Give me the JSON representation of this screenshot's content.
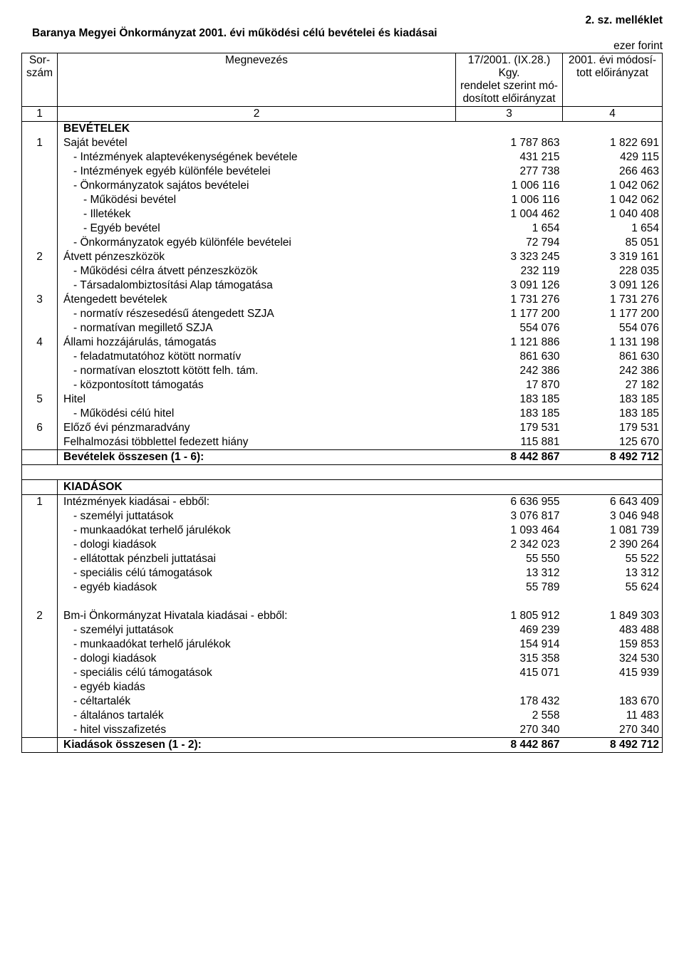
{
  "meta": {
    "attachment": "2. sz. melléklet",
    "title": "Baranya Megyei Önkormányzat 2001. évi működési célú bevételei és kiadásai",
    "unit": "ezer forint"
  },
  "header": {
    "c1a": "Sor-",
    "c1b": "szám",
    "c2": "Megnevezés",
    "c3a": "17/2001. (IX.28.) Kgy.",
    "c3b": "rendelet szerint mó-",
    "c3c": "dosított előirányzat",
    "c4a": "2001. évi módosí-",
    "c4b": "tott előirányzat",
    "n1": "1",
    "n2": "2",
    "n3": "3",
    "n4": "4"
  },
  "rows": [
    {
      "num": "",
      "name": "BEVÉTELEK",
      "v1": "",
      "v2": "",
      "bold": true,
      "ind": 1,
      "topline": true
    },
    {
      "num": "1",
      "name": "Saját bevétel",
      "v1": "1 787 863",
      "v2": "1 822 691",
      "ind": 1
    },
    {
      "num": "",
      "name": "- Intézmények alaptevékenységének bevétele",
      "v1": "431 215",
      "v2": "429 115",
      "ind": 2
    },
    {
      "num": "",
      "name": "- Intézmények egyéb különféle bevételei",
      "v1": "277 738",
      "v2": "266 463",
      "ind": 2
    },
    {
      "num": "",
      "name": "- Önkormányzatok sajátos bevételei",
      "v1": "1 006 116",
      "v2": "1 042 062",
      "ind": 2
    },
    {
      "num": "",
      "name": "- Működési bevétel",
      "v1": "1 006 116",
      "v2": "1 042 062",
      "ind": 3
    },
    {
      "num": "",
      "name": "- Illetékek",
      "v1": "1 004 462",
      "v2": "1 040 408",
      "ind": 3
    },
    {
      "num": "",
      "name": "- Egyéb bevétel",
      "v1": "1 654",
      "v2": "1 654",
      "ind": 3
    },
    {
      "num": "",
      "name": "- Önkormányzatok egyéb különféle bevételei",
      "v1": "72 794",
      "v2": "85 051",
      "ind": 2
    },
    {
      "num": "2",
      "name": "Átvett pénzeszközök",
      "v1": "3 323 245",
      "v2": "3 319 161",
      "ind": 1
    },
    {
      "num": "",
      "name": "- Működési célra átvett pénzeszközök",
      "v1": "232 119",
      "v2": "228 035",
      "ind": 2
    },
    {
      "num": "",
      "name": "- Társadalombiztosítási Alap támogatása",
      "v1": "3 091 126",
      "v2": "3 091 126",
      "ind": 2
    },
    {
      "num": "3",
      "name": "Átengedett bevételek",
      "v1": "1 731 276",
      "v2": "1 731 276",
      "ind": 1
    },
    {
      "num": "",
      "name": "- normatív részesedésű átengedett SZJA",
      "v1": "1 177 200",
      "v2": "1 177 200",
      "ind": 2
    },
    {
      "num": "",
      "name": "- normatívan megillető SZJA",
      "v1": "554 076",
      "v2": "554 076",
      "ind": 2
    },
    {
      "num": "4",
      "name": "Állami hozzájárulás, támogatás",
      "v1": "1 121 886",
      "v2": "1 131 198",
      "ind": 1
    },
    {
      "num": "",
      "name": "- feladatmutatóhoz kötött normatív",
      "v1": "861 630",
      "v2": "861 630",
      "ind": 2
    },
    {
      "num": "",
      "name": "- normatívan elosztott kötött felh. tám.",
      "v1": "242 386",
      "v2": "242 386",
      "ind": 2
    },
    {
      "num": "",
      "name": "- központosított támogatás",
      "v1": "17 870",
      "v2": "27 182",
      "ind": 2
    },
    {
      "num": "5",
      "name": "Hitel",
      "v1": "183 185",
      "v2": "183 185",
      "ind": 1
    },
    {
      "num": "",
      "name": "- Működési célú hitel",
      "v1": "183 185",
      "v2": "183 185",
      "ind": 2
    },
    {
      "num": "6",
      "name": "Előző évi pénzmaradvány",
      "v1": "179 531",
      "v2": "179 531",
      "ind": 1
    },
    {
      "num": "",
      "name": "Felhalmozási többlettel fedezett hiány",
      "v1": "115 881",
      "v2": "125 670",
      "ind": 1
    },
    {
      "num": "",
      "name": "Bevételek összesen (1 - 6):",
      "v1": "8 442 867",
      "v2": "8 492 712",
      "bold": true,
      "ind": 1,
      "bottomline": true,
      "topline": true
    },
    {
      "spacer": true
    },
    {
      "num": "",
      "name": "KIADÁSOK",
      "v1": "",
      "v2": "",
      "bold": true,
      "ind": 1,
      "topline": true,
      "bottomline": true
    },
    {
      "num": "1",
      "name": "Intézmények kiadásai - ebből:",
      "v1": "6 636 955",
      "v2": "6 643 409",
      "ind": 1
    },
    {
      "num": "",
      "name": "- személyi juttatások",
      "v1": "3 076 817",
      "v2": "3 046 948",
      "ind": 2
    },
    {
      "num": "",
      "name": "- munkaadókat terhelő járulékok",
      "v1": "1 093 464",
      "v2": "1 081 739",
      "ind": 2
    },
    {
      "num": "",
      "name": "- dologi kiadások",
      "v1": "2 342 023",
      "v2": "2 390 264",
      "ind": 2
    },
    {
      "num": "",
      "name": "- ellátottak pénzbeli juttatásai",
      "v1": "55 550",
      "v2": "55 522",
      "ind": 2
    },
    {
      "num": "",
      "name": "- speciális célú támogatások",
      "v1": "13 312",
      "v2": "13 312",
      "ind": 2
    },
    {
      "num": "",
      "name": "- egyéb kiadások",
      "v1": "55 789",
      "v2": "55 624",
      "ind": 2
    },
    {
      "blank": true
    },
    {
      "num": "2",
      "name": "Bm-i Önkormányzat Hivatala kiadásai - ebből:",
      "v1": "1 805 912",
      "v2": "1 849 303",
      "ind": 1
    },
    {
      "num": "",
      "name": "- személyi juttatások",
      "v1": "469 239",
      "v2": "483 488",
      "ind": 2
    },
    {
      "num": "",
      "name": "- munkaadókat terhelő járulékok",
      "v1": "154 914",
      "v2": "159 853",
      "ind": 2
    },
    {
      "num": "",
      "name": "- dologi kiadások",
      "v1": "315 358",
      "v2": "324 530",
      "ind": 2
    },
    {
      "num": "",
      "name": "- speciális célú támogatások",
      "v1": "415 071",
      "v2": "415 939",
      "ind": 2
    },
    {
      "num": "",
      "name": "- egyéb kiadás",
      "v1": "",
      "v2": "",
      "ind": 2
    },
    {
      "num": "",
      "name": "- céltartalék",
      "v1": "178 432",
      "v2": "183 670",
      "ind": 2
    },
    {
      "num": "",
      "name": "- általános tartalék",
      "v1": "2 558",
      "v2": "11 483",
      "ind": 2
    },
    {
      "num": "",
      "name": "- hitel visszafizetés",
      "v1": "270 340",
      "v2": "270 340",
      "ind": 2
    },
    {
      "num": "",
      "name": "Kiadások összesen (1 - 2):",
      "v1": "8 442 867",
      "v2": "8 492 712",
      "bold": true,
      "ind": 1,
      "topline": true,
      "bottomline": true
    }
  ]
}
